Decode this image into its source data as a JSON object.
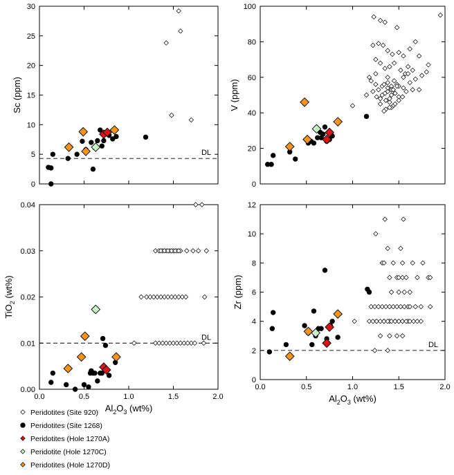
{
  "chart_data": [
    {
      "type": "scatter",
      "id": "sc",
      "ylabel": "Sc (ppm)",
      "xlabel": "",
      "xlim": [
        0,
        2.0
      ],
      "ylim": [
        0,
        30
      ],
      "xticks": [
        0.0,
        0.5,
        1.0,
        1.5,
        2.0
      ],
      "yticks": [
        0,
        5,
        10,
        15,
        20,
        25,
        30
      ],
      "yticklabels": [
        "0",
        "5",
        "10",
        "15",
        "20",
        "25",
        "30"
      ],
      "show_xticklabels": false,
      "reference_line": {
        "y": 4.3,
        "label": "DL"
      },
      "series": [
        {
          "key": "site920",
          "x": [
            1.42,
            1.56,
            1.58,
            1.48,
            1.7
          ],
          "y": [
            23.8,
            29.2,
            25.8,
            11.6,
            10.8
          ]
        },
        {
          "key": "site1268",
          "x": [
            0.1,
            0.13,
            0.15,
            0.32,
            0.42,
            0.48,
            0.52,
            0.58,
            0.6,
            0.62,
            0.65,
            0.68,
            0.7,
            0.72,
            0.75,
            0.78,
            0.82,
            0.86,
            1.19,
            0.13
          ],
          "y": [
            2.8,
            2.7,
            5.0,
            4.3,
            5.0,
            7.2,
            5.8,
            7.0,
            2.5,
            6.1,
            7.3,
            9.1,
            6.4,
            7.3,
            8.7,
            8.2,
            7.6,
            8.0,
            7.9,
            0.0
          ]
        },
        {
          "key": "hole1270A",
          "x": [
            0.72,
            0.76
          ],
          "y": [
            8.4,
            8.7
          ]
        },
        {
          "key": "hole1270C",
          "x": [
            0.63
          ],
          "y": [
            6.2
          ]
        },
        {
          "key": "hole1270D",
          "x": [
            0.33,
            0.49,
            0.52,
            0.84
          ],
          "y": [
            6.2,
            8.8,
            5.5,
            9.1
          ]
        }
      ]
    },
    {
      "type": "scatter",
      "id": "v",
      "ylabel": "V (ppm)",
      "xlabel": "",
      "xlim": [
        0,
        2.0
      ],
      "ylim": [
        0,
        100
      ],
      "xticks": [
        0.0,
        0.5,
        1.0,
        1.5,
        2.0
      ],
      "yticks": [
        0,
        20,
        40,
        60,
        80,
        100
      ],
      "yticklabels": [
        "0",
        "20",
        "40",
        "60",
        "80",
        "100"
      ],
      "show_xticklabels": false,
      "series": [
        {
          "key": "site920",
          "x": [
            1.23,
            1.3,
            1.35,
            1.48,
            1.95,
            1.22,
            1.28,
            1.33,
            1.38,
            1.43,
            1.5,
            1.55,
            1.62,
            1.68,
            1.72,
            1.82,
            1.25,
            1.3,
            1.35,
            1.4,
            1.45,
            1.52,
            1.57,
            1.6,
            1.65,
            1.75,
            1.8,
            1.2,
            1.25,
            1.32,
            1.38,
            1.42,
            1.48,
            1.55,
            1.62,
            1.68,
            1.15,
            1.22,
            1.28,
            1.35,
            1.42,
            1.5,
            1.58,
            1.65,
            1.72,
            1.3,
            1.36,
            1.4,
            1.44,
            1.46,
            1.5,
            1.54,
            1.38,
            1.42,
            1.46,
            1.5,
            1.34,
            1.38,
            1.44,
            1.48,
            1.26,
            1.32,
            1.4,
            1.46,
            1.3,
            1.36,
            1.42,
            1.18,
            1.25,
            1.55,
            1.6,
            1.38,
            1.45,
            1.0,
            1.34,
            1.4
          ],
          "y": [
            94,
            92,
            91,
            88,
            95,
            78,
            79,
            78,
            75,
            73,
            74,
            72,
            76,
            80,
            72,
            67,
            70,
            68,
            65,
            66,
            68,
            64,
            62,
            66,
            64,
            61,
            63,
            58,
            56,
            55,
            57,
            55,
            56,
            54,
            57,
            59,
            50,
            52,
            53,
            51,
            50,
            49,
            52,
            53,
            53,
            48,
            47,
            46,
            44,
            45,
            47,
            49,
            52,
            53,
            51,
            55,
            56,
            54,
            53,
            55,
            49,
            50,
            48,
            51,
            45,
            42,
            43,
            60,
            62,
            60,
            62,
            60,
            58,
            44,
            41,
            43
          ]
        },
        {
          "key": "site1268",
          "x": [
            0.08,
            0.12,
            0.14,
            0.38,
            0.32,
            0.52,
            0.55,
            0.58,
            0.62,
            0.65,
            0.68,
            0.7,
            0.72,
            0.75,
            0.78,
            0.66,
            1.15
          ],
          "y": [
            11,
            11,
            16,
            14,
            18,
            23,
            24,
            23,
            26,
            29,
            28,
            32,
            24,
            25,
            27,
            26,
            38
          ]
        },
        {
          "key": "hole1270A",
          "x": [
            0.72,
            0.75
          ],
          "y": [
            25,
            29
          ]
        },
        {
          "key": "hole1270C",
          "x": [
            0.61
          ],
          "y": [
            31
          ]
        },
        {
          "key": "hole1270D",
          "x": [
            0.32,
            0.48,
            0.51,
            0.84
          ],
          "y": [
            21,
            46,
            25,
            35
          ]
        }
      ]
    },
    {
      "type": "scatter",
      "id": "ti",
      "ylabel": "TiO2 (wt%)",
      "ylabel_main": "TiO",
      "ylabel_sub": "2",
      "ylabel_tail": " (wt%)",
      "xlabel": "",
      "xlim": [
        0,
        2.0
      ],
      "ylim": [
        0,
        0.04
      ],
      "xticks": [
        0.0,
        0.5,
        1.0,
        1.5,
        2.0
      ],
      "xticklabels": [
        "0.0",
        "0.5",
        "1.0",
        "1.5",
        "2.0"
      ],
      "yticks": [
        0.0,
        0.01,
        0.02,
        0.03,
        0.04
      ],
      "yticklabels": [
        "0.00",
        "0.01",
        "0.02",
        "0.03",
        "0.04"
      ],
      "show_xticklabels": true,
      "reference_line": {
        "y": 0.01,
        "label": "DL"
      },
      "series": [
        {
          "key": "site920",
          "x": [
            1.75,
            1.82,
            1.38,
            1.42,
            1.46,
            1.5,
            1.54,
            1.58,
            1.65,
            1.72,
            1.78,
            1.87,
            1.3,
            1.34,
            1.36,
            1.4,
            1.44,
            1.48,
            1.52,
            1.56,
            1.85,
            1.14,
            1.2,
            1.24,
            1.28,
            1.32,
            1.36,
            1.4,
            1.44,
            1.48,
            1.52,
            1.56,
            1.6,
            1.64,
            1.7,
            1.74,
            1.84,
            1.06,
            1.3,
            1.34,
            1.38,
            1.42,
            1.46,
            1.5,
            1.54,
            1.58,
            1.62,
            1.66
          ],
          "y": [
            0.04,
            0.04,
            0.03,
            0.03,
            0.03,
            0.03,
            0.03,
            0.03,
            0.03,
            0.03,
            0.03,
            0.03,
            0.03,
            0.03,
            0.03,
            0.03,
            0.03,
            0.03,
            0.03,
            0.03,
            0.02,
            0.02,
            0.02,
            0.02,
            0.02,
            0.02,
            0.02,
            0.02,
            0.02,
            0.02,
            0.02,
            0.02,
            0.02,
            0.02,
            0.01,
            0.01,
            0.01,
            0.01,
            0.01,
            0.01,
            0.01,
            0.01,
            0.01,
            0.01,
            0.01,
            0.01,
            0.01,
            0.01
          ]
        },
        {
          "key": "site1268",
          "x": [
            0.13,
            0.15,
            0.3,
            0.4,
            0.5,
            0.55,
            0.58,
            0.6,
            0.62,
            0.65,
            0.68,
            0.7,
            0.71,
            0.74,
            0.78,
            0.85,
            0.57
          ],
          "y": [
            0.0015,
            0.0035,
            0.001,
            0.0,
            0.001,
            0.0005,
            0.004,
            0.0035,
            0.0035,
            0.0018,
            0.0035,
            0.0035,
            0.011,
            0.0095,
            0.003,
            0.0058,
            0.0035
          ]
        },
        {
          "key": "hole1270A",
          "x": [
            0.72,
            0.75
          ],
          "y": [
            0.0048,
            0.0042
          ]
        },
        {
          "key": "hole1270C",
          "x": [
            0.63
          ],
          "y": [
            0.0173
          ]
        },
        {
          "key": "hole1270D",
          "x": [
            0.32,
            0.47,
            0.51,
            0.86
          ],
          "y": [
            0.0045,
            0.007,
            0.0115,
            0.007
          ]
        }
      ]
    },
    {
      "type": "scatter",
      "id": "zr",
      "ylabel": "Zr (ppm)",
      "xlabel": "Al2O3 (wt%)",
      "xlim": [
        0,
        2.0
      ],
      "ylim": [
        0,
        12
      ],
      "xticks": [
        0.0,
        0.5,
        1.0,
        1.5,
        2.0
      ],
      "xticklabels": [
        "0.0",
        "0.5",
        "1.0",
        "1.5",
        "2.0"
      ],
      "yticks": [
        0,
        2,
        4,
        6,
        8,
        10,
        12
      ],
      "yticklabels": [
        "0",
        "2",
        "4",
        "6",
        "8",
        "10",
        "12"
      ],
      "show_xticklabels": true,
      "reference_line": {
        "y": 2.0,
        "label": "DL"
      },
      "series": [
        {
          "key": "site920",
          "x": [
            1.35,
            1.55,
            1.25,
            1.38,
            1.52,
            1.32,
            1.34,
            1.44,
            1.54,
            1.65,
            1.76,
            1.82,
            1.4,
            1.48,
            1.5,
            1.54,
            1.58,
            1.7,
            1.84,
            1.42,
            1.5,
            1.56,
            1.62,
            1.2,
            1.24,
            1.28,
            1.32,
            1.36,
            1.4,
            1.44,
            1.48,
            1.52,
            1.56,
            1.6,
            1.62,
            1.68,
            1.74,
            1.26,
            1.34,
            1.4,
            1.46,
            1.5,
            1.54,
            1.6,
            1.84,
            1.18,
            1.22,
            1.26,
            1.3,
            1.34,
            1.38,
            1.42,
            1.46,
            1.5,
            1.54,
            1.58,
            1.62,
            1.66,
            1.7,
            1.74,
            1.02,
            1.3,
            1.4,
            1.48,
            1.54,
            1.38,
            1.24
          ],
          "y": [
            11,
            11,
            10,
            9,
            9,
            8,
            8,
            8,
            8,
            8,
            8,
            7,
            7,
            7,
            7,
            7,
            7,
            7,
            7,
            6,
            6,
            6,
            6,
            5,
            5,
            5,
            5,
            5,
            5,
            5,
            5,
            5,
            5,
            5,
            5,
            5,
            5,
            4,
            4,
            4,
            4,
            4,
            4,
            4,
            5,
            4,
            4,
            4,
            4,
            4,
            4,
            4,
            4,
            4,
            4,
            4,
            4,
            4,
            4,
            4,
            4,
            3,
            3,
            3,
            3,
            2,
            2
          ]
        },
        {
          "key": "site1268",
          "x": [
            0.1,
            0.13,
            0.14,
            0.28,
            0.48,
            0.52,
            0.56,
            0.58,
            0.6,
            0.63,
            0.66,
            0.7,
            0.72,
            0.76,
            0.78,
            0.84,
            1.16,
            1.18
          ],
          "y": [
            1.9,
            3.5,
            4.6,
            2.4,
            3.7,
            3.2,
            2.4,
            4.7,
            3.0,
            3.5,
            3.5,
            7.5,
            2.8,
            3.7,
            4.0,
            2.9,
            6.2,
            6.0
          ]
        },
        {
          "key": "hole1270A",
          "x": [
            0.72,
            0.75
          ],
          "y": [
            2.5,
            3.6
          ]
        },
        {
          "key": "hole1270C",
          "x": [
            0.6
          ],
          "y": [
            3.2
          ]
        },
        {
          "key": "hole1270D",
          "x": [
            0.32,
            0.52,
            0.84
          ],
          "y": [
            1.6,
            3.3,
            4.5
          ]
        }
      ]
    }
  ],
  "series_styles": {
    "site920": {
      "marker": "diamond",
      "size": "small",
      "fill": "#ffffff",
      "stroke": "#000000"
    },
    "site1268": {
      "marker": "circle",
      "size": "small",
      "fill": "#000000",
      "stroke": "#000000"
    },
    "hole1270A": {
      "marker": "diamond",
      "size": "large",
      "fill": "#d7161b",
      "stroke": "#000000"
    },
    "hole1270C": {
      "marker": "diamond",
      "size": "large",
      "fill": "#c9f2c9",
      "stroke": "#000000"
    },
    "hole1270D": {
      "marker": "diamond",
      "size": "large",
      "fill": "#f7941d",
      "stroke": "#000000"
    }
  },
  "x_axis_label": {
    "main": "Al",
    "sub1": "2",
    "mid": "O",
    "sub2": "3",
    "tail": " (wt%)"
  },
  "legend": {
    "placement": "bottom-left",
    "entries": [
      {
        "key": "site920",
        "label": "Peridotites (Site 920)"
      },
      {
        "key": "site1268",
        "label": "Peridotites (Site 1268)"
      },
      {
        "key": "hole1270A",
        "label": "Peridotites (Hole 1270A)"
      },
      {
        "key": "hole1270C",
        "label": "Peridotite (Hole 1270C)"
      },
      {
        "key": "hole1270D",
        "label": "Peridotites (Hole 1270D)"
      }
    ]
  }
}
